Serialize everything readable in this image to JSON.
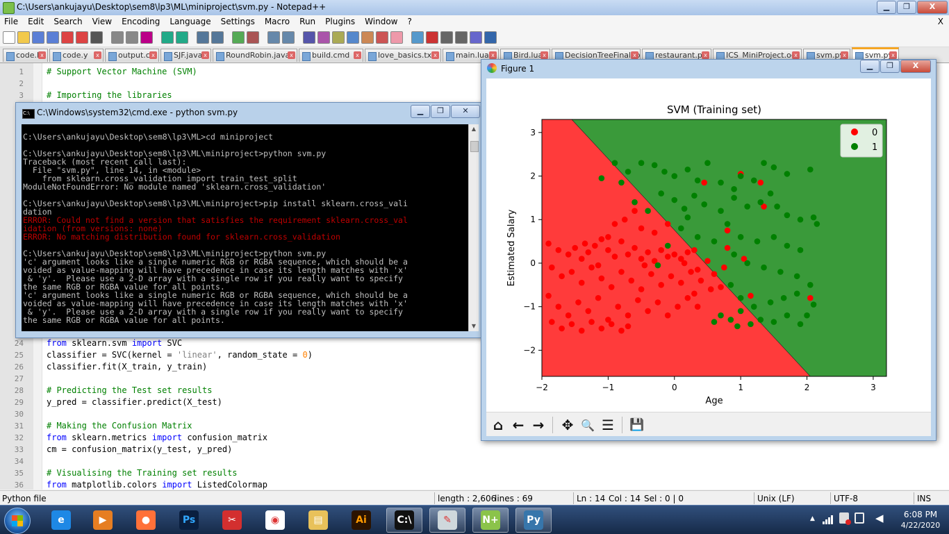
{
  "npp": {
    "title": "C:\\Users\\ankujayu\\Desktop\\sem8\\lp3\\ML\\miniproject\\svm.py - Notepad++",
    "menu": [
      "File",
      "Edit",
      "Search",
      "View",
      "Encoding",
      "Language",
      "Settings",
      "Macro",
      "Run",
      "Plugins",
      "Window",
      "?"
    ],
    "menu_close": "X",
    "window_controls": {
      "minimize": "▁",
      "maximize": "❐",
      "close": "X"
    },
    "tabs": [
      "code.l",
      "code.y",
      "output.c",
      "SJF.java",
      "RoundRobin.java",
      "build.cmd",
      "love_basics.txt",
      "main.lua",
      "Bird.lua",
      "DecisionTreeFinal.ipynb",
      "restaurant.py",
      "ICS_MiniProject.odt",
      "svm.py",
      "svm.py"
    ],
    "lines": [
      {
        "n": "1",
        "t": "# Support Vector Machine (SVM)",
        "c": "cm"
      },
      {
        "n": "2",
        "t": "",
        "c": ""
      },
      {
        "n": "3",
        "t": "# Importing the libraries",
        "c": "cm"
      },
      {
        "n": "24",
        "t": "",
        "c": "",
        "parts": [
          [
            "from",
            "kw"
          ],
          [
            " sklearn.svm ",
            ""
          ],
          [
            "import",
            "kw"
          ],
          [
            " SVC",
            ""
          ]
        ]
      },
      {
        "n": "25",
        "t": "",
        "c": "",
        "parts": [
          [
            "classifier = SVC(kernel = ",
            ""
          ],
          [
            "'linear'",
            "str"
          ],
          [
            ", random_state = ",
            ""
          ],
          [
            "0",
            "num"
          ],
          [
            ")",
            ""
          ]
        ]
      },
      {
        "n": "26",
        "t": "classifier.fit(X_train, y_train)",
        "c": ""
      },
      {
        "n": "27",
        "t": "",
        "c": ""
      },
      {
        "n": "28",
        "t": "# Predicting the Test set results",
        "c": "cm"
      },
      {
        "n": "29",
        "t": "y_pred = classifier.predict(X_test)",
        "c": ""
      },
      {
        "n": "30",
        "t": "",
        "c": ""
      },
      {
        "n": "31",
        "t": "# Making the Confusion Matrix",
        "c": "cm"
      },
      {
        "n": "32",
        "t": "",
        "c": "",
        "parts": [
          [
            "from",
            "kw"
          ],
          [
            " sklearn.metrics ",
            ""
          ],
          [
            "import",
            "kw"
          ],
          [
            " confusion_matrix",
            ""
          ]
        ]
      },
      {
        "n": "33",
        "t": "cm = confusion_matrix(y_test, y_pred)",
        "c": ""
      },
      {
        "n": "34",
        "t": "",
        "c": ""
      },
      {
        "n": "35",
        "t": "# Visualising the Training set results",
        "c": "cm"
      },
      {
        "n": "36",
        "t": "",
        "c": "",
        "parts": [
          [
            "from",
            "kw"
          ],
          [
            " matplotlib.colors ",
            ""
          ],
          [
            "import",
            "kw"
          ],
          [
            " ListedColormap",
            ""
          ]
        ]
      }
    ],
    "status": {
      "lang": "Python file",
      "length": "length : 2,606",
      "lines": "lines : 69",
      "ln": "Ln : 14",
      "col": "Col : 14",
      "sel": "Sel : 0 | 0",
      "eol": "Unix (LF)",
      "enc": "UTF-8",
      "ins": "INS"
    }
  },
  "cmd": {
    "title": "C:\\Windows\\system32\\cmd.exe - python  svm.py",
    "window_controls": {
      "minimize": "▁",
      "maximize": "❐",
      "close": "✕"
    },
    "lines": [
      {
        "t": "",
        "err": false
      },
      {
        "t": "C:\\Users\\ankujayu\\Desktop\\sem8\\lp3\\ML>cd miniproject",
        "err": false
      },
      {
        "t": "",
        "err": false
      },
      {
        "t": "C:\\Users\\ankujayu\\Desktop\\sem8\\lp3\\ML\\miniproject>python svm.py",
        "err": false
      },
      {
        "t": "Traceback (most recent call last):",
        "err": false
      },
      {
        "t": "  File \"svm.py\", line 14, in <module>",
        "err": false
      },
      {
        "t": "    from sklearn.cross_validation import train_test_split",
        "err": false
      },
      {
        "t": "ModuleNotFoundError: No module named 'sklearn.cross_validation'",
        "err": false
      },
      {
        "t": "",
        "err": false
      },
      {
        "t": "C:\\Users\\ankujayu\\Desktop\\sem8\\lp3\\ML\\miniproject>pip install sklearn.cross_vali",
        "err": false
      },
      {
        "t": "dation",
        "err": false
      },
      {
        "t": "ERROR: Could not find a version that satisfies the requirement sklearn.cross_val",
        "err": true
      },
      {
        "t": "idation (from versions: none)",
        "err": true
      },
      {
        "t": "ERROR: No matching distribution found for sklearn.cross_validation",
        "err": true
      },
      {
        "t": "",
        "err": false
      },
      {
        "t": "C:\\Users\\ankujayu\\Desktop\\sem8\\lp3\\ML\\miniproject>python svm.py",
        "err": false
      },
      {
        "t": "'c' argument looks like a single numeric RGB or RGBA sequence, which should be a",
        "err": false
      },
      {
        "t": "voided as value-mapping will have precedence in case its length matches with 'x'",
        "err": false
      },
      {
        "t": " & 'y'.  Please use a 2-D array with a single row if you really want to specify",
        "err": false
      },
      {
        "t": "the same RGB or RGBA value for all points.",
        "err": false
      },
      {
        "t": "'c' argument looks like a single numeric RGB or RGBA sequence, which should be a",
        "err": false
      },
      {
        "t": "voided as value-mapping will have precedence in case its length matches with 'x'",
        "err": false
      },
      {
        "t": " & 'y'.  Please use a 2-D array with a single row if you really want to specify",
        "err": false
      },
      {
        "t": "the same RGB or RGBA value for all points.",
        "err": false
      }
    ]
  },
  "figure": {
    "title": "Figure 1",
    "window_controls": {
      "minimize": "▁",
      "maximize": "❐",
      "close": "X"
    },
    "toolbar": {
      "home": "⌂",
      "back": "←",
      "forward": "→",
      "pan": "✥",
      "zoom": "🔍",
      "configure": "☰",
      "save": "💾"
    }
  },
  "chart_data": {
    "type": "scatter",
    "title": "SVM (Training set)",
    "xlabel": "Age",
    "ylabel": "Estimated Salary",
    "xlim": [
      -2.0,
      3.2
    ],
    "ylim": [
      -2.6,
      3.3
    ],
    "xticks": [
      -2,
      -1,
      0,
      1,
      2,
      3
    ],
    "yticks": [
      -2,
      -1,
      0,
      1,
      2,
      3
    ],
    "x_tick_labels": [
      "−2",
      "−1",
      "0",
      "1",
      "2",
      "3"
    ],
    "y_tick_labels": [
      "−2",
      "−1",
      "0",
      "1",
      "2",
      "3"
    ],
    "grid": false,
    "legend_position": "top-right",
    "background_regions": {
      "class_0_color": "#ff3b3b",
      "class_1_color": "#3a9a3a",
      "boundary": [
        [
          -1.55,
          3.3
        ],
        [
          2.05,
          -2.6
        ]
      ]
    },
    "series": [
      {
        "name": "0",
        "color": "#ff0000",
        "points": [
          [
            -1.9,
            0.45
          ],
          [
            -1.75,
            0.3
          ],
          [
            -1.6,
            0.2
          ],
          [
            -1.5,
            0.35
          ],
          [
            -1.4,
            0.1
          ],
          [
            -1.3,
            0.25
          ],
          [
            -1.2,
            0.4
          ],
          [
            -1.1,
            0.55
          ],
          [
            -1.0,
            0.3
          ],
          [
            -0.9,
            0.15
          ],
          [
            -0.8,
            0.5
          ],
          [
            -0.7,
            0.2
          ],
          [
            -0.6,
            0.35
          ],
          [
            -0.5,
            0.1
          ],
          [
            -0.4,
            0.25
          ],
          [
            -0.3,
            0.05
          ],
          [
            -0.2,
            0.3
          ],
          [
            -0.1,
            0.15
          ],
          [
            0.0,
            0.2
          ],
          [
            0.1,
            0.1
          ],
          [
            0.2,
            0.25
          ],
          [
            0.3,
            0.3
          ],
          [
            -1.85,
            -0.1
          ],
          [
            -1.7,
            -0.3
          ],
          [
            -1.55,
            -0.2
          ],
          [
            -1.4,
            -0.45
          ],
          [
            -1.25,
            -0.1
          ],
          [
            -1.1,
            -0.35
          ],
          [
            -0.95,
            -0.55
          ],
          [
            -0.8,
            -0.2
          ],
          [
            -0.65,
            -0.4
          ],
          [
            -0.5,
            -0.6
          ],
          [
            -0.35,
            -0.25
          ],
          [
            -0.2,
            -0.5
          ],
          [
            -0.05,
            -0.3
          ],
          [
            0.1,
            -0.45
          ],
          [
            0.25,
            -0.2
          ],
          [
            0.4,
            -0.4
          ],
          [
            0.55,
            -0.6
          ],
          [
            -1.9,
            -0.75
          ],
          [
            -1.75,
            -1.0
          ],
          [
            -1.6,
            -1.2
          ],
          [
            -1.45,
            -0.9
          ],
          [
            -1.3,
            -1.1
          ],
          [
            -1.15,
            -0.8
          ],
          [
            -1.0,
            -1.3
          ],
          [
            -0.85,
            -1.0
          ],
          [
            -0.7,
            -1.2
          ],
          [
            -0.55,
            -0.85
          ],
          [
            -0.4,
            -1.1
          ],
          [
            -0.25,
            -0.9
          ],
          [
            -0.1,
            -1.2
          ],
          [
            0.05,
            -1.0
          ],
          [
            0.2,
            -0.8
          ],
          [
            0.35,
            -1.0
          ],
          [
            -1.85,
            -1.35
          ],
          [
            -1.7,
            -1.5
          ],
          [
            -1.55,
            -1.4
          ],
          [
            -1.4,
            -1.55
          ],
          [
            -1.25,
            -1.35
          ],
          [
            -1.1,
            -1.5
          ],
          [
            -0.95,
            -1.4
          ],
          [
            -0.8,
            -1.55
          ],
          [
            -0.7,
            -1.45
          ],
          [
            -1.0,
            0.6
          ],
          [
            -0.9,
            0.9
          ],
          [
            -0.75,
            1.0
          ],
          [
            -0.6,
            1.2
          ],
          [
            -0.5,
            0.8
          ],
          [
            -0.3,
            0.7
          ],
          [
            -0.1,
            0.9
          ],
          [
            -1.35,
            0.45
          ],
          [
            -1.15,
            -0.05
          ],
          [
            -0.45,
            -0.05
          ],
          [
            0.15,
            0.0
          ],
          [
            0.35,
            -0.15
          ],
          [
            0.5,
            0.05
          ],
          [
            0.6,
            -0.25
          ],
          [
            0.7,
            -0.55
          ],
          [
            0.8,
            0.75
          ],
          [
            1.0,
            2.05
          ],
          [
            0.45,
            1.85
          ],
          [
            1.3,
            1.85
          ],
          [
            1.35,
            1.3
          ],
          [
            0.8,
            0.35
          ],
          [
            1.05,
            0.1
          ],
          [
            1.15,
            -0.75
          ],
          [
            2.05,
            -0.8
          ],
          [
            0.75,
            -0.1
          ],
          [
            0.3,
            -0.7
          ]
        ]
      },
      {
        "name": "1",
        "color": "#008000",
        "points": [
          [
            -1.1,
            1.95
          ],
          [
            -0.9,
            2.3
          ],
          [
            -0.7,
            2.1
          ],
          [
            -0.5,
            2.3
          ],
          [
            -0.3,
            2.25
          ],
          [
            -0.15,
            2.1
          ],
          [
            0.0,
            2.0
          ],
          [
            0.2,
            2.15
          ],
          [
            0.35,
            1.9
          ],
          [
            0.5,
            2.3
          ],
          [
            0.7,
            1.85
          ],
          [
            0.9,
            1.7
          ],
          [
            1.0,
            2.0
          ],
          [
            1.2,
            1.9
          ],
          [
            1.35,
            2.3
          ],
          [
            1.5,
            2.2
          ],
          [
            1.7,
            2.05
          ],
          [
            2.05,
            2.15
          ],
          [
            -0.6,
            1.4
          ],
          [
            -0.4,
            1.2
          ],
          [
            -0.2,
            1.6
          ],
          [
            0.0,
            1.45
          ],
          [
            0.15,
            1.25
          ],
          [
            0.3,
            1.55
          ],
          [
            0.45,
            1.35
          ],
          [
            0.7,
            1.2
          ],
          [
            0.9,
            1.5
          ],
          [
            1.1,
            1.3
          ],
          [
            1.3,
            1.4
          ],
          [
            1.55,
            1.3
          ],
          [
            1.7,
            1.1
          ],
          [
            1.9,
            1.0
          ],
          [
            2.1,
            1.05
          ],
          [
            2.15,
            0.9
          ],
          [
            0.1,
            0.8
          ],
          [
            0.35,
            0.6
          ],
          [
            0.6,
            0.5
          ],
          [
            0.8,
            0.9
          ],
          [
            1.0,
            0.6
          ],
          [
            1.25,
            0.5
          ],
          [
            1.5,
            0.6
          ],
          [
            1.7,
            0.4
          ],
          [
            1.9,
            0.3
          ],
          [
            0.9,
            0.2
          ],
          [
            1.1,
            0.0
          ],
          [
            1.35,
            -0.1
          ],
          [
            1.6,
            -0.2
          ],
          [
            1.85,
            -0.3
          ],
          [
            2.05,
            -0.5
          ],
          [
            0.85,
            -0.5
          ],
          [
            1.0,
            -0.8
          ],
          [
            1.2,
            -1.0
          ],
          [
            1.45,
            -0.9
          ],
          [
            1.65,
            -0.8
          ],
          [
            1.85,
            -0.7
          ],
          [
            2.1,
            -0.95
          ],
          [
            0.7,
            -1.2
          ],
          [
            0.85,
            -1.3
          ],
          [
            1.0,
            -1.1
          ],
          [
            1.15,
            -1.4
          ],
          [
            1.3,
            -1.3
          ],
          [
            1.5,
            -1.35
          ],
          [
            1.7,
            -1.2
          ],
          [
            1.9,
            -1.4
          ],
          [
            2.0,
            -1.2
          ],
          [
            0.95,
            -1.45
          ],
          [
            0.6,
            -1.35
          ],
          [
            -0.25,
            -0.05
          ],
          [
            -0.1,
            0.4
          ],
          [
            0.2,
            1.05
          ],
          [
            -0.8,
            1.85
          ],
          [
            1.45,
            1.6
          ]
        ]
      }
    ]
  },
  "taskbar": {
    "apps": [
      "Internet Explorer",
      "Media",
      "Firefox",
      "Photoshop",
      "Snipping",
      "Chrome",
      "Explorer",
      "Illustrator",
      "cmd",
      "Paint",
      "Notepad++",
      "Python"
    ],
    "clock_time": "6:08 PM",
    "clock_date": "4/22/2020"
  }
}
